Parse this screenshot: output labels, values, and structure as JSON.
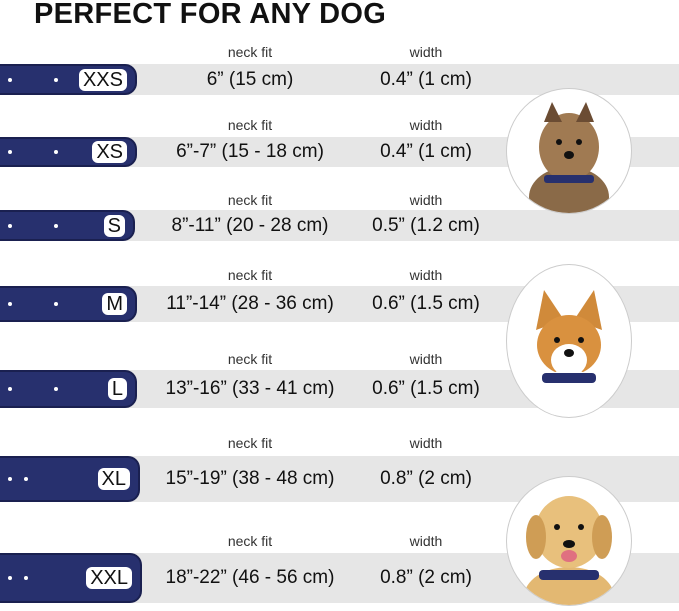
{
  "title": "PERFECT FOR ANY DOG",
  "neck_label": "neck fit",
  "width_label": "width",
  "colors": {
    "collar": "#27306e",
    "band": "#e6e6e6"
  },
  "rows": [
    {
      "size": "XXS",
      "neck": "6” (15 cm)",
      "width": "0.4” (1 cm)"
    },
    {
      "size": "XS",
      "neck": "6”-7” (15 - 18 cm)",
      "width": "0.4” (1 cm)"
    },
    {
      "size": "S",
      "neck": "8”-11” (20 - 28 cm)",
      "width": "0.5” (1.2 cm)"
    },
    {
      "size": "M",
      "neck": "11”-14” (28 - 36 cm)",
      "width": "0.6” (1.5 cm)"
    },
    {
      "size": "L",
      "neck": "13”-16” (33 - 41 cm)",
      "width": "0.6” (1.5 cm)"
    },
    {
      "size": "XL",
      "neck": "15”-19” (38 - 48 cm)",
      "width": "0.8” (2 cm)"
    },
    {
      "size": "XXL",
      "neck": "18”-22” (46 - 56 cm)",
      "width": "0.8” (2 cm)"
    }
  ],
  "dogs": [
    "terrier",
    "corgi",
    "labrador"
  ]
}
